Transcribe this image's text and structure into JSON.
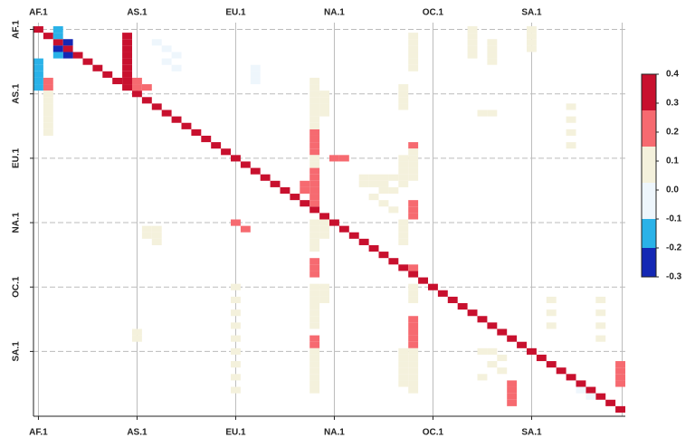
{
  "chart_data": {
    "type": "heatmap",
    "categories": [
      "AF.1",
      null,
      null,
      null,
      null,
      null,
      null,
      null,
      null,
      null,
      "AS.1",
      null,
      null,
      null,
      null,
      null,
      null,
      null,
      null,
      null,
      "EU.1",
      null,
      null,
      null,
      null,
      null,
      null,
      null,
      null,
      null,
      "NA.1",
      null,
      null,
      null,
      null,
      null,
      null,
      null,
      null,
      null,
      "OC.1",
      null,
      null,
      null,
      null,
      null,
      null,
      null,
      null,
      null,
      "SA.1",
      null,
      null,
      null,
      null,
      null,
      null,
      null,
      null,
      null
    ],
    "colorbar": {
      "breaks": [
        -0.3,
        -0.2,
        -0.1,
        0.025,
        0.15,
        0.275,
        0.4
      ],
      "colors": [
        "#1428b4",
        "#2ab2e8",
        "#eef6fc",
        "#f4f1dc",
        "#f66a70",
        "#c8102e"
      ],
      "ticks": [
        0.4,
        0.3,
        0.2,
        0.1,
        {
          "value": 0,
          "label": "0.0"
        },
        -0.1,
        -0.2,
        -0.3
      ]
    },
    "grid": true,
    "cells": [
      [
        0,
        0,
        0.35
      ],
      [
        1,
        1,
        0.35
      ],
      [
        2,
        2,
        0.35
      ],
      [
        3,
        3,
        0.35
      ],
      [
        4,
        4,
        0.35
      ],
      [
        5,
        5,
        0.35
      ],
      [
        6,
        6,
        0.35
      ],
      [
        7,
        7,
        0.35
      ],
      [
        8,
        8,
        0.35
      ],
      [
        9,
        9,
        0.35
      ],
      [
        10,
        10,
        0.35
      ],
      [
        11,
        11,
        0.35
      ],
      [
        12,
        12,
        0.35
      ],
      [
        13,
        13,
        0.35
      ],
      [
        14,
        14,
        0.35
      ],
      [
        15,
        15,
        0.35
      ],
      [
        16,
        16,
        0.35
      ],
      [
        17,
        17,
        0.35
      ],
      [
        18,
        18,
        0.35
      ],
      [
        19,
        19,
        0.35
      ],
      [
        20,
        20,
        0.35
      ],
      [
        21,
        21,
        0.35
      ],
      [
        22,
        22,
        0.35
      ],
      [
        23,
        23,
        0.35
      ],
      [
        24,
        24,
        0.35
      ],
      [
        25,
        25,
        0.35
      ],
      [
        26,
        26,
        0.35
      ],
      [
        27,
        27,
        0.35
      ],
      [
        28,
        28,
        0.35
      ],
      [
        29,
        29,
        0.35
      ],
      [
        30,
        30,
        0.35
      ],
      [
        31,
        31,
        0.35
      ],
      [
        32,
        32,
        0.35
      ],
      [
        33,
        33,
        0.35
      ],
      [
        34,
        34,
        0.35
      ],
      [
        35,
        35,
        0.35
      ],
      [
        36,
        36,
        0.35
      ],
      [
        37,
        37,
        0.35
      ],
      [
        38,
        38,
        0.35
      ],
      [
        39,
        39,
        0.35
      ],
      [
        40,
        40,
        0.35
      ],
      [
        41,
        41,
        0.35
      ],
      [
        42,
        42,
        0.35
      ],
      [
        43,
        43,
        0.35
      ],
      [
        44,
        44,
        0.35
      ],
      [
        45,
        45,
        0.35
      ],
      [
        46,
        46,
        0.35
      ],
      [
        47,
        47,
        0.35
      ],
      [
        48,
        48,
        0.35
      ],
      [
        49,
        49,
        0.35
      ],
      [
        50,
        50,
        0.35
      ],
      [
        51,
        51,
        0.35
      ],
      [
        52,
        52,
        0.35
      ],
      [
        53,
        53,
        0.35
      ],
      [
        54,
        54,
        0.35
      ],
      [
        55,
        55,
        0.35
      ],
      [
        56,
        56,
        0.35
      ],
      [
        57,
        57,
        0.35
      ],
      [
        58,
        58,
        0.35
      ],
      [
        59,
        59,
        0.35
      ],
      [
        2,
        0,
        -0.15
      ],
      [
        2,
        1,
        -0.15
      ],
      [
        3,
        2,
        -0.25
      ],
      [
        2,
        3,
        -0.25
      ],
      [
        3,
        4,
        -0.25
      ],
      [
        2,
        4,
        -0.15
      ],
      [
        0,
        5,
        -0.15
      ],
      [
        0,
        6,
        -0.15
      ],
      [
        0,
        7,
        -0.15
      ],
      [
        0,
        8,
        -0.15
      ],
      [
        0,
        9,
        -0.15
      ],
      [
        1,
        8,
        0.25
      ],
      [
        1,
        9,
        0.25
      ],
      [
        9,
        1,
        0.35
      ],
      [
        9,
        2,
        0.35
      ],
      [
        9,
        3,
        0.35
      ],
      [
        9,
        4,
        0.35
      ],
      [
        9,
        5,
        0.35
      ],
      [
        9,
        6,
        0.35
      ],
      [
        9,
        7,
        0.35
      ],
      [
        9,
        8,
        0.35
      ],
      [
        10,
        8,
        0.25
      ],
      [
        10,
        9,
        0.25
      ],
      [
        11,
        9,
        0.25
      ],
      [
        28,
        16,
        0.25
      ],
      [
        28,
        17,
        0.25
      ],
      [
        28,
        18,
        0.25
      ],
      [
        28,
        19,
        0.25
      ],
      [
        27,
        24,
        0.25
      ],
      [
        27,
        25,
        0.25
      ],
      [
        28,
        22,
        0.25
      ],
      [
        28,
        23,
        0.25
      ],
      [
        28,
        24,
        0.25
      ],
      [
        28,
        25,
        0.25
      ],
      [
        28,
        26,
        0.25
      ],
      [
        28,
        27,
        0.25
      ],
      [
        28,
        36,
        0.25
      ],
      [
        28,
        37,
        0.25
      ],
      [
        28,
        38,
        0.25
      ],
      [
        28,
        48,
        0.25
      ],
      [
        28,
        49,
        0.25
      ],
      [
        30,
        20,
        0.25
      ],
      [
        31,
        20,
        0.25
      ],
      [
        20,
        30,
        0.25
      ],
      [
        21,
        31,
        0.25
      ],
      [
        38,
        18,
        0.25
      ],
      [
        38,
        27,
        0.25
      ],
      [
        38,
        28,
        0.25
      ],
      [
        38,
        29,
        0.25
      ],
      [
        38,
        37,
        0.25
      ],
      [
        38,
        45,
        0.25
      ],
      [
        38,
        46,
        0.25
      ],
      [
        38,
        47,
        0.25
      ],
      [
        38,
        48,
        0.25
      ],
      [
        38,
        49,
        0.25
      ],
      [
        48,
        55,
        0.25
      ],
      [
        48,
        56,
        0.25
      ],
      [
        48,
        57,
        0.25
      ],
      [
        48,
        58,
        0.25
      ],
      [
        59,
        52,
        0.25
      ],
      [
        59,
        53,
        0.25
      ],
      [
        59,
        54,
        0.25
      ],
      [
        59,
        55,
        0.25
      ],
      [
        1,
        10,
        0.1
      ],
      [
        1,
        11,
        0.1
      ],
      [
        1,
        12,
        0.1
      ],
      [
        1,
        13,
        0.1
      ],
      [
        1,
        14,
        0.1
      ],
      [
        1,
        15,
        0.1
      ],
      [
        1,
        16,
        0.1
      ],
      [
        28,
        8,
        0.1
      ],
      [
        28,
        9,
        0.1
      ],
      [
        28,
        10,
        0.1
      ],
      [
        28,
        11,
        0.1
      ],
      [
        28,
        12,
        0.1
      ],
      [
        28,
        13,
        0.1
      ],
      [
        28,
        14,
        0.1
      ],
      [
        28,
        15,
        0.1
      ],
      [
        28,
        20,
        0.1
      ],
      [
        28,
        21,
        0.1
      ],
      [
        28,
        30,
        0.1
      ],
      [
        28,
        31,
        0.1
      ],
      [
        28,
        32,
        0.1
      ],
      [
        28,
        33,
        0.1
      ],
      [
        28,
        34,
        0.1
      ],
      [
        28,
        40,
        0.1
      ],
      [
        28,
        41,
        0.1
      ],
      [
        28,
        42,
        0.1
      ],
      [
        28,
        43,
        0.1
      ],
      [
        28,
        44,
        0.1
      ],
      [
        28,
        45,
        0.1
      ],
      [
        28,
        46,
        0.1
      ],
      [
        28,
        50,
        0.1
      ],
      [
        28,
        51,
        0.1
      ],
      [
        28,
        52,
        0.1
      ],
      [
        28,
        53,
        0.1
      ],
      [
        28,
        54,
        0.1
      ],
      [
        28,
        55,
        0.1
      ],
      [
        28,
        56,
        0.1
      ],
      [
        29,
        10,
        0.1
      ],
      [
        29,
        11,
        0.1
      ],
      [
        29,
        12,
        0.1
      ],
      [
        29,
        13,
        0.1
      ],
      [
        29,
        30,
        0.1
      ],
      [
        29,
        31,
        0.1
      ],
      [
        29,
        32,
        0.1
      ],
      [
        29,
        40,
        0.1
      ],
      [
        29,
        41,
        0.1
      ],
      [
        29,
        42,
        0.1
      ],
      [
        37,
        9,
        0.1
      ],
      [
        37,
        10,
        0.1
      ],
      [
        37,
        11,
        0.1
      ],
      [
        37,
        12,
        0.1
      ],
      [
        37,
        20,
        0.1
      ],
      [
        37,
        21,
        0.1
      ],
      [
        37,
        22,
        0.1
      ],
      [
        37,
        23,
        0.1
      ],
      [
        37,
        24,
        0.1
      ],
      [
        37,
        30,
        0.1
      ],
      [
        37,
        31,
        0.1
      ],
      [
        37,
        32,
        0.1
      ],
      [
        37,
        33,
        0.1
      ],
      [
        37,
        50,
        0.1
      ],
      [
        37,
        51,
        0.1
      ],
      [
        37,
        52,
        0.1
      ],
      [
        37,
        53,
        0.1
      ],
      [
        37,
        54,
        0.1
      ],
      [
        37,
        55,
        0.1
      ],
      [
        38,
        1,
        0.1
      ],
      [
        38,
        2,
        0.1
      ],
      [
        38,
        3,
        0.1
      ],
      [
        38,
        4,
        0.1
      ],
      [
        38,
        5,
        0.1
      ],
      [
        38,
        6,
        0.1
      ],
      [
        38,
        19,
        0.1
      ],
      [
        38,
        20,
        0.1
      ],
      [
        38,
        21,
        0.1
      ],
      [
        38,
        22,
        0.1
      ],
      [
        38,
        23,
        0.1
      ],
      [
        38,
        40,
        0.1
      ],
      [
        38,
        41,
        0.1
      ],
      [
        38,
        42,
        0.1
      ],
      [
        38,
        50,
        0.1
      ],
      [
        38,
        51,
        0.1
      ],
      [
        38,
        52,
        0.1
      ],
      [
        38,
        53,
        0.1
      ],
      [
        38,
        54,
        0.1
      ],
      [
        38,
        55,
        0.1
      ],
      [
        38,
        56,
        0.1
      ],
      [
        33,
        23,
        0.1
      ],
      [
        34,
        23,
        0.1
      ],
      [
        35,
        23,
        0.1
      ],
      [
        36,
        23,
        0.1
      ],
      [
        33,
        24,
        0.1
      ],
      [
        34,
        24,
        0.1
      ],
      [
        35,
        24,
        0.1
      ],
      [
        35,
        25,
        0.1
      ],
      [
        36,
        25,
        0.1
      ],
      [
        34,
        26,
        0.1
      ],
      [
        35,
        27,
        0.1
      ],
      [
        36,
        28,
        0.1
      ],
      [
        44,
        0,
        0.1
      ],
      [
        44,
        1,
        0.1
      ],
      [
        44,
        2,
        0.1
      ],
      [
        44,
        3,
        0.1
      ],
      [
        44,
        4,
        0.1
      ],
      [
        50,
        0,
        0.1
      ],
      [
        50,
        1,
        0.1
      ],
      [
        50,
        2,
        0.1
      ],
      [
        50,
        3,
        0.1
      ],
      [
        46,
        2,
        0.1
      ],
      [
        46,
        3,
        0.1
      ],
      [
        46,
        4,
        0.1
      ],
      [
        46,
        5,
        0.1
      ],
      [
        10,
        47,
        0.1
      ],
      [
        10,
        48,
        0.1
      ],
      [
        11,
        31,
        0.1
      ],
      [
        11,
        32,
        0.1
      ],
      [
        12,
        31,
        0.1
      ],
      [
        12,
        32,
        0.1
      ],
      [
        12,
        33,
        0.1
      ],
      [
        20,
        40,
        0.1
      ],
      [
        20,
        42,
        0.1
      ],
      [
        20,
        44,
        0.1
      ],
      [
        20,
        46,
        0.1
      ],
      [
        20,
        48,
        0.1
      ],
      [
        20,
        50,
        0.1
      ],
      [
        20,
        52,
        0.1
      ],
      [
        20,
        54,
        0.1
      ],
      [
        20,
        56,
        0.1
      ],
      [
        45,
        50,
        0.1
      ],
      [
        46,
        50,
        0.1
      ],
      [
        47,
        51,
        0.1
      ],
      [
        46,
        52,
        0.1
      ],
      [
        47,
        53,
        0.1
      ],
      [
        45,
        54,
        0.1
      ],
      [
        54,
        12,
        0.1
      ],
      [
        54,
        14,
        0.1
      ],
      [
        54,
        16,
        0.1
      ],
      [
        54,
        18,
        0.1
      ],
      [
        52,
        42,
        0.1
      ],
      [
        52,
        44,
        0.1
      ],
      [
        52,
        46,
        0.1
      ],
      [
        57,
        42,
        0.1
      ],
      [
        57,
        44,
        0.1
      ],
      [
        57,
        46,
        0.1
      ],
      [
        57,
        48,
        0.1
      ],
      [
        46,
        13,
        0.1
      ],
      [
        45,
        13,
        0.1
      ],
      [
        12,
        2,
        -0.05
      ],
      [
        13,
        3,
        -0.05
      ],
      [
        14,
        4,
        -0.05
      ],
      [
        13,
        5,
        -0.05
      ],
      [
        14,
        6,
        -0.05
      ],
      [
        22,
        6,
        -0.05
      ],
      [
        22,
        7,
        -0.05
      ],
      [
        22,
        8,
        -0.05
      ],
      [
        55,
        56,
        -0.05
      ],
      [
        56,
        57,
        -0.05
      ]
    ]
  }
}
